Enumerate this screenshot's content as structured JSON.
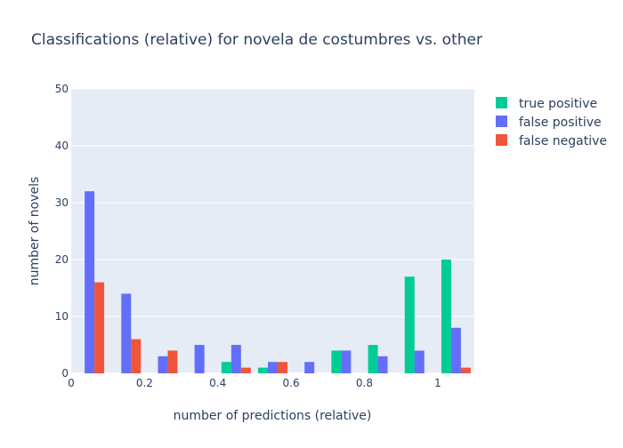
{
  "chart_data": {
    "type": "bar",
    "title": "Classifications (relative) for novela de costumbres vs. other",
    "xlabel": "number of predictions (relative)",
    "ylabel": "number of novels",
    "xlim": [
      0,
      1.1
    ],
    "ylim": [
      0,
      50
    ],
    "x_ticks": [
      0,
      0.2,
      0.4,
      0.6,
      0.8,
      1
    ],
    "y_ticks": [
      0,
      10,
      20,
      30,
      40,
      50
    ],
    "bin_width": 0.1,
    "bin_starts": [
      0,
      0.1,
      0.2,
      0.3,
      0.4,
      0.5,
      0.6,
      0.7,
      0.8,
      0.9,
      1.0
    ],
    "grid": true,
    "legend_position": "top-right",
    "series": [
      {
        "name": "true positive",
        "color": "#00cc96",
        "values": [
          0,
          0,
          0,
          0,
          2,
          1,
          0,
          4,
          5,
          17,
          20
        ]
      },
      {
        "name": "false positive",
        "color": "#636efa",
        "values": [
          32,
          14,
          3,
          5,
          5,
          2,
          2,
          4,
          3,
          4,
          8
        ]
      },
      {
        "name": "false negative",
        "color": "#ef553b",
        "values": [
          16,
          6,
          4,
          0,
          1,
          2,
          0,
          0,
          0,
          0,
          1
        ]
      }
    ]
  }
}
